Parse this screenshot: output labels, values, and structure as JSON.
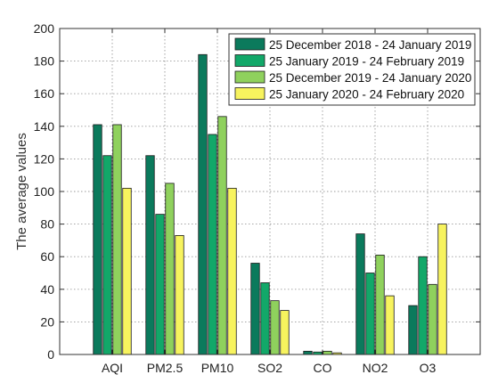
{
  "chart_data": {
    "type": "bar",
    "title": "",
    "xlabel": "",
    "ylabel": "The average values",
    "categories": [
      "AQI",
      "PM2.5",
      "PM10",
      "SO2",
      "CO",
      "NO2",
      "O3"
    ],
    "yticks": [
      "0",
      "20",
      "40",
      "60",
      "80",
      "100",
      "120",
      "140",
      "160",
      "180",
      "200"
    ],
    "ylim": [
      0,
      200
    ],
    "grid": true,
    "legend_position": "top-right",
    "series": [
      {
        "name": "25 December 2018 - 24 January 2019",
        "color": "#0b7a5c",
        "values": [
          141,
          122,
          184,
          56,
          2,
          74,
          30
        ]
      },
      {
        "name": "25 January 2019 - 24 February 2019",
        "color": "#12a869",
        "values": [
          122,
          86,
          135,
          44,
          1.5,
          50,
          60
        ]
      },
      {
        "name": "25 December 2019 - 24 January 2020",
        "color": "#8fd15d",
        "values": [
          141,
          105,
          146,
          33,
          2,
          61,
          43
        ]
      },
      {
        "name": "25 January 2020 - 24 February 2020",
        "color": "#f7f35e",
        "values": [
          102,
          73,
          102,
          27,
          1,
          36,
          80
        ]
      }
    ]
  }
}
